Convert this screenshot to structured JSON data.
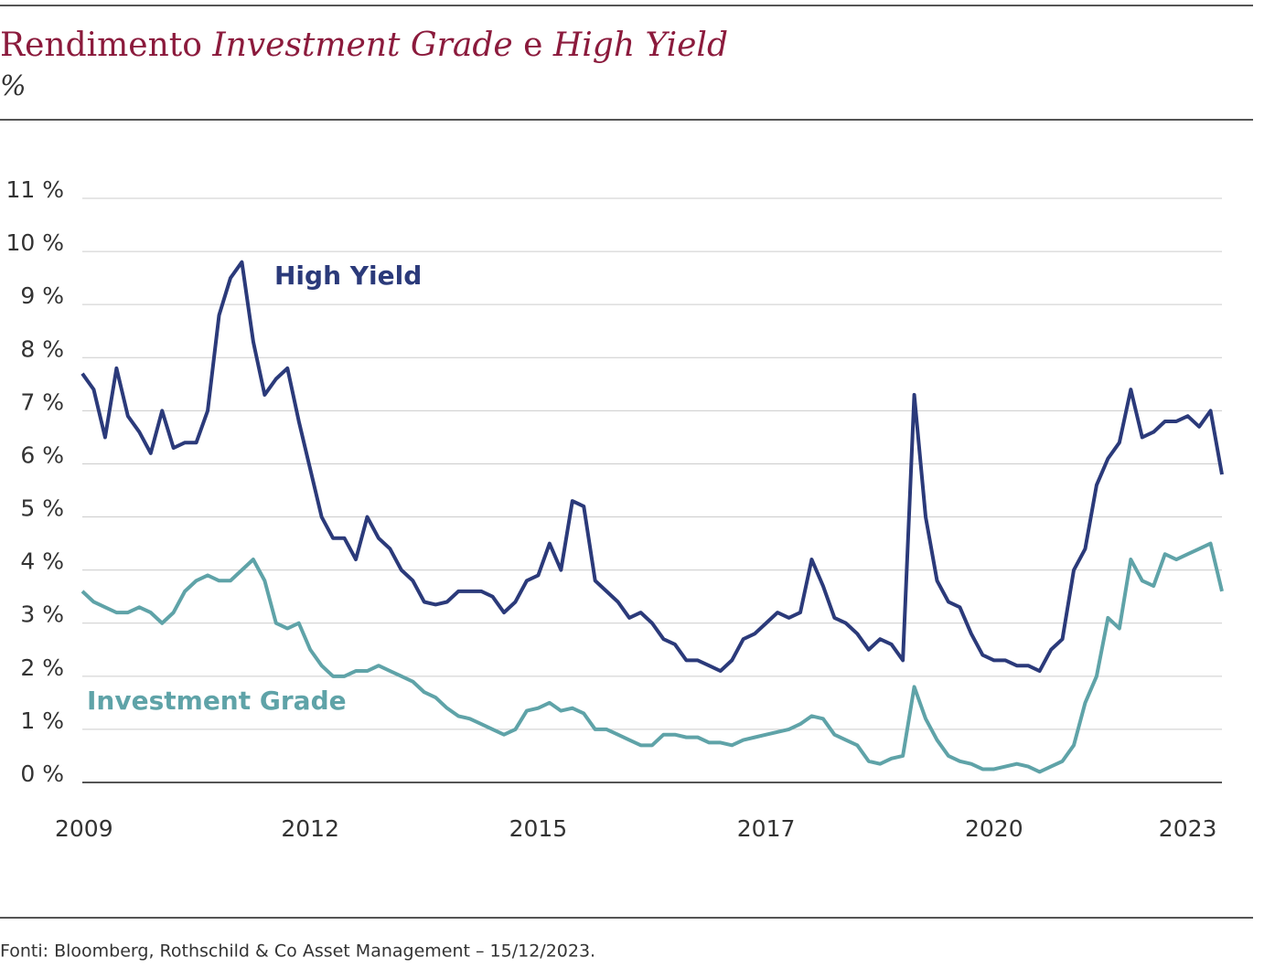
{
  "chart_data": {
    "type": "line",
    "title": [
      "Rendimento ",
      "Investment Grade",
      " e ",
      "High Yield"
    ],
    "subtitle": "%",
    "source": "Fonti: Bloomberg, Rothschild & Co Asset Management – 15/12/2023.",
    "categories": [
      "2009",
      null,
      null,
      null,
      null,
      null,
      null,
      null,
      null,
      null,
      null,
      null,
      null,
      null,
      null,
      null,
      null,
      null,
      null,
      null,
      "2012",
      null,
      null,
      null,
      null,
      null,
      null,
      null,
      null,
      null,
      null,
      null,
      null,
      null,
      null,
      null,
      null,
      null,
      null,
      null,
      "2015",
      null,
      null,
      null,
      null,
      null,
      null,
      null,
      null,
      null,
      null,
      null,
      null,
      null,
      null,
      null,
      null,
      null,
      null,
      null,
      "2017",
      null,
      null,
      null,
      null,
      null,
      null,
      null,
      null,
      null,
      null,
      null,
      null,
      null,
      null,
      null,
      null,
      null,
      null,
      null,
      "2020",
      null,
      null,
      null,
      null,
      null,
      null,
      null,
      null,
      null,
      null,
      null,
      null,
      null,
      null,
      null,
      null,
      "2023",
      null,
      null,
      null
    ],
    "series": [
      {
        "name": "High Yield",
        "color": "#2b3a7a",
        "values": [
          7.7,
          7.4,
          6.5,
          7.8,
          6.9,
          6.6,
          6.2,
          7.0,
          6.3,
          6.4,
          6.4,
          7.0,
          8.8,
          9.5,
          9.8,
          8.3,
          7.3,
          7.6,
          7.8,
          6.8,
          5.9,
          5.0,
          4.6,
          4.6,
          4.2,
          5.0,
          4.6,
          4.4,
          4.0,
          3.8,
          3.4,
          3.35,
          3.4,
          3.6,
          3.6,
          3.6,
          3.5,
          3.2,
          3.4,
          3.8,
          3.9,
          4.5,
          4.0,
          5.3,
          5.2,
          3.8,
          3.6,
          3.4,
          3.1,
          3.2,
          3.0,
          2.7,
          2.6,
          2.3,
          2.3,
          2.2,
          2.1,
          2.3,
          2.7,
          2.8,
          3.0,
          3.2,
          3.1,
          3.2,
          4.2,
          3.7,
          3.1,
          3.0,
          2.8,
          2.5,
          2.7,
          2.6,
          2.3,
          7.3,
          5.0,
          3.8,
          3.4,
          3.3,
          2.8,
          2.4,
          2.3,
          2.3,
          2.2,
          2.2,
          2.1,
          2.5,
          2.7,
          4.0,
          4.4,
          5.6,
          6.1,
          6.4,
          7.4,
          6.5,
          6.6,
          6.8,
          6.8,
          6.9,
          6.7,
          7.0,
          5.8
        ]
      },
      {
        "name": "Investment Grade",
        "color": "#5fa3a8",
        "values": [
          3.6,
          3.4,
          3.3,
          3.2,
          3.2,
          3.3,
          3.2,
          3.0,
          3.2,
          3.6,
          3.8,
          3.9,
          3.8,
          3.8,
          4.0,
          4.2,
          3.8,
          3.0,
          2.9,
          3.0,
          2.5,
          2.2,
          2.0,
          2.0,
          2.1,
          2.1,
          2.2,
          2.1,
          2.0,
          1.9,
          1.7,
          1.6,
          1.4,
          1.25,
          1.2,
          1.1,
          1.0,
          0.9,
          1.0,
          1.35,
          1.4,
          1.5,
          1.35,
          1.4,
          1.3,
          1.0,
          1.0,
          0.9,
          0.8,
          0.7,
          0.7,
          0.9,
          0.9,
          0.85,
          0.85,
          0.75,
          0.75,
          0.7,
          0.8,
          0.85,
          0.9,
          0.95,
          1.0,
          1.1,
          1.25,
          1.2,
          0.9,
          0.8,
          0.7,
          0.4,
          0.35,
          0.45,
          0.5,
          1.8,
          1.2,
          0.8,
          0.5,
          0.4,
          0.35,
          0.25,
          0.25,
          0.3,
          0.35,
          0.3,
          0.2,
          0.3,
          0.4,
          0.7,
          1.5,
          2.0,
          3.1,
          2.9,
          4.2,
          3.8,
          3.7,
          4.3,
          4.2,
          4.3,
          4.4,
          4.5,
          3.6
        ]
      }
    ],
    "ylim": [
      0,
      11
    ],
    "yticks": [
      {
        "value": 0,
        "label": "0 %"
      },
      {
        "value": 1,
        "label": "1 %"
      },
      {
        "value": 2,
        "label": "2 %"
      },
      {
        "value": 3,
        "label": "3 %"
      },
      {
        "value": 4,
        "label": "4 %"
      },
      {
        "value": 5,
        "label": "5 %"
      },
      {
        "value": 6,
        "label": "6 %"
      },
      {
        "value": 7,
        "label": "7 %"
      },
      {
        "value": 8,
        "label": "8 %"
      },
      {
        "value": 9,
        "label": "9 %"
      },
      {
        "value": 10,
        "label": "10 %"
      },
      {
        "value": 11,
        "label": "11 %"
      }
    ],
    "grid": true
  }
}
